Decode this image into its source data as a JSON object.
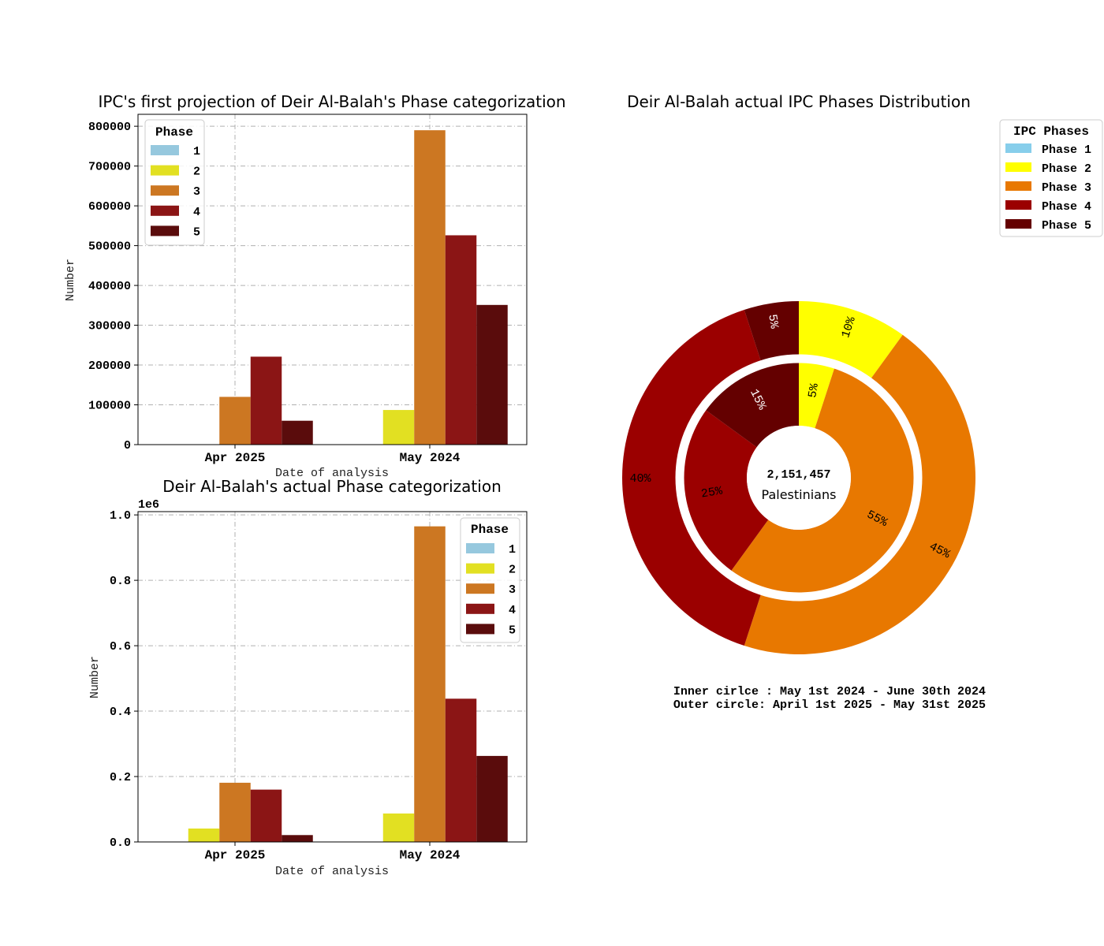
{
  "chart_data": [
    {
      "type": "bar",
      "title": "IPC's first projection of Deir Al-Balah's Phase categorization",
      "xlabel": "Date of analysis",
      "ylabel": "Number",
      "categories": [
        "Apr 2025",
        "May 2024"
      ],
      "ylim": [
        0,
        830000
      ],
      "yticks": [
        0,
        100000,
        200000,
        300000,
        400000,
        500000,
        600000,
        700000,
        800000
      ],
      "ytick_labels": [
        "0",
        "100000",
        "200000",
        "300000",
        "400000",
        "500000",
        "600000",
        "700000",
        "800000"
      ],
      "offset_label": "",
      "legend_title": "Phase",
      "legend_position": "upper-left",
      "grid": true,
      "series": [
        {
          "name": "1",
          "color": "#96c8de",
          "values": [
            0,
            0
          ]
        },
        {
          "name": "2",
          "color": "#e2e022",
          "values": [
            0,
            87000
          ]
        },
        {
          "name": "3",
          "color": "#cc7722",
          "values": [
            120000,
            790000
          ]
        },
        {
          "name": "4",
          "color": "#8b1515",
          "values": [
            221000,
            526000
          ]
        },
        {
          "name": "5",
          "color": "#5a0c0c",
          "values": [
            60000,
            351000
          ]
        }
      ]
    },
    {
      "type": "bar",
      "title": "Deir Al-Balah's actual Phase categorization",
      "xlabel": "Date of analysis",
      "ylabel": "Number",
      "categories": [
        "Apr 2025",
        "May 2024"
      ],
      "ylim": [
        0,
        1010000
      ],
      "yticks": [
        0,
        200000,
        400000,
        600000,
        800000,
        1000000
      ],
      "ytick_labels": [
        "0.0",
        "0.2",
        "0.4",
        "0.6",
        "0.8",
        "1.0"
      ],
      "offset_label": "1e6",
      "legend_title": "Phase",
      "legend_position": "upper-right",
      "grid": true,
      "series": [
        {
          "name": "1",
          "color": "#96c8de",
          "values": [
            0,
            0
          ]
        },
        {
          "name": "2",
          "color": "#e2e022",
          "values": [
            41000,
            87000
          ]
        },
        {
          "name": "3",
          "color": "#cc7722",
          "values": [
            181000,
            965000
          ]
        },
        {
          "name": "4",
          "color": "#8b1515",
          "values": [
            160000,
            438000
          ]
        },
        {
          "name": "5",
          "color": "#5a0c0c",
          "values": [
            21000,
            263000
          ]
        }
      ]
    },
    {
      "type": "pie",
      "title": "Deir Al-Balah actual IPC Phases Distribution",
      "legend_title": "IPC Phases",
      "legend_position": "top-right",
      "labels": [
        "Phase 1",
        "Phase 2",
        "Phase 3",
        "Phase 4",
        "Phase 5"
      ],
      "colors": [
        "#87ceeb",
        "#ffff00",
        "#e87800",
        "#9b0000",
        "#640000"
      ],
      "outer": {
        "period": "April 1st 2025 - May 31st 2025",
        "values": [
          0,
          10,
          45,
          40,
          5
        ],
        "labels": [
          "",
          "10%",
          "45%",
          "40%",
          "5%"
        ],
        "label_colors": [
          "#000000",
          "#000000",
          "#000000",
          "#000000",
          "#ffffff"
        ]
      },
      "inner": {
        "period": "May 1st 2024 - June 30th 2024",
        "values": [
          0,
          5,
          55,
          25,
          15
        ],
        "labels": [
          "",
          "5%",
          "55%",
          "25%",
          "15%"
        ],
        "label_colors": [
          "#000000",
          "#000000",
          "#000000",
          "#000000",
          "#ffffff"
        ]
      },
      "center_value": "2,151,457",
      "center_text": "Palestinians",
      "notes": [
        "Inner cirlce : May 1st 2024 - June 30th 2024",
        "Outer circle: April 1st 2025 - May 31st 2025"
      ]
    }
  ]
}
